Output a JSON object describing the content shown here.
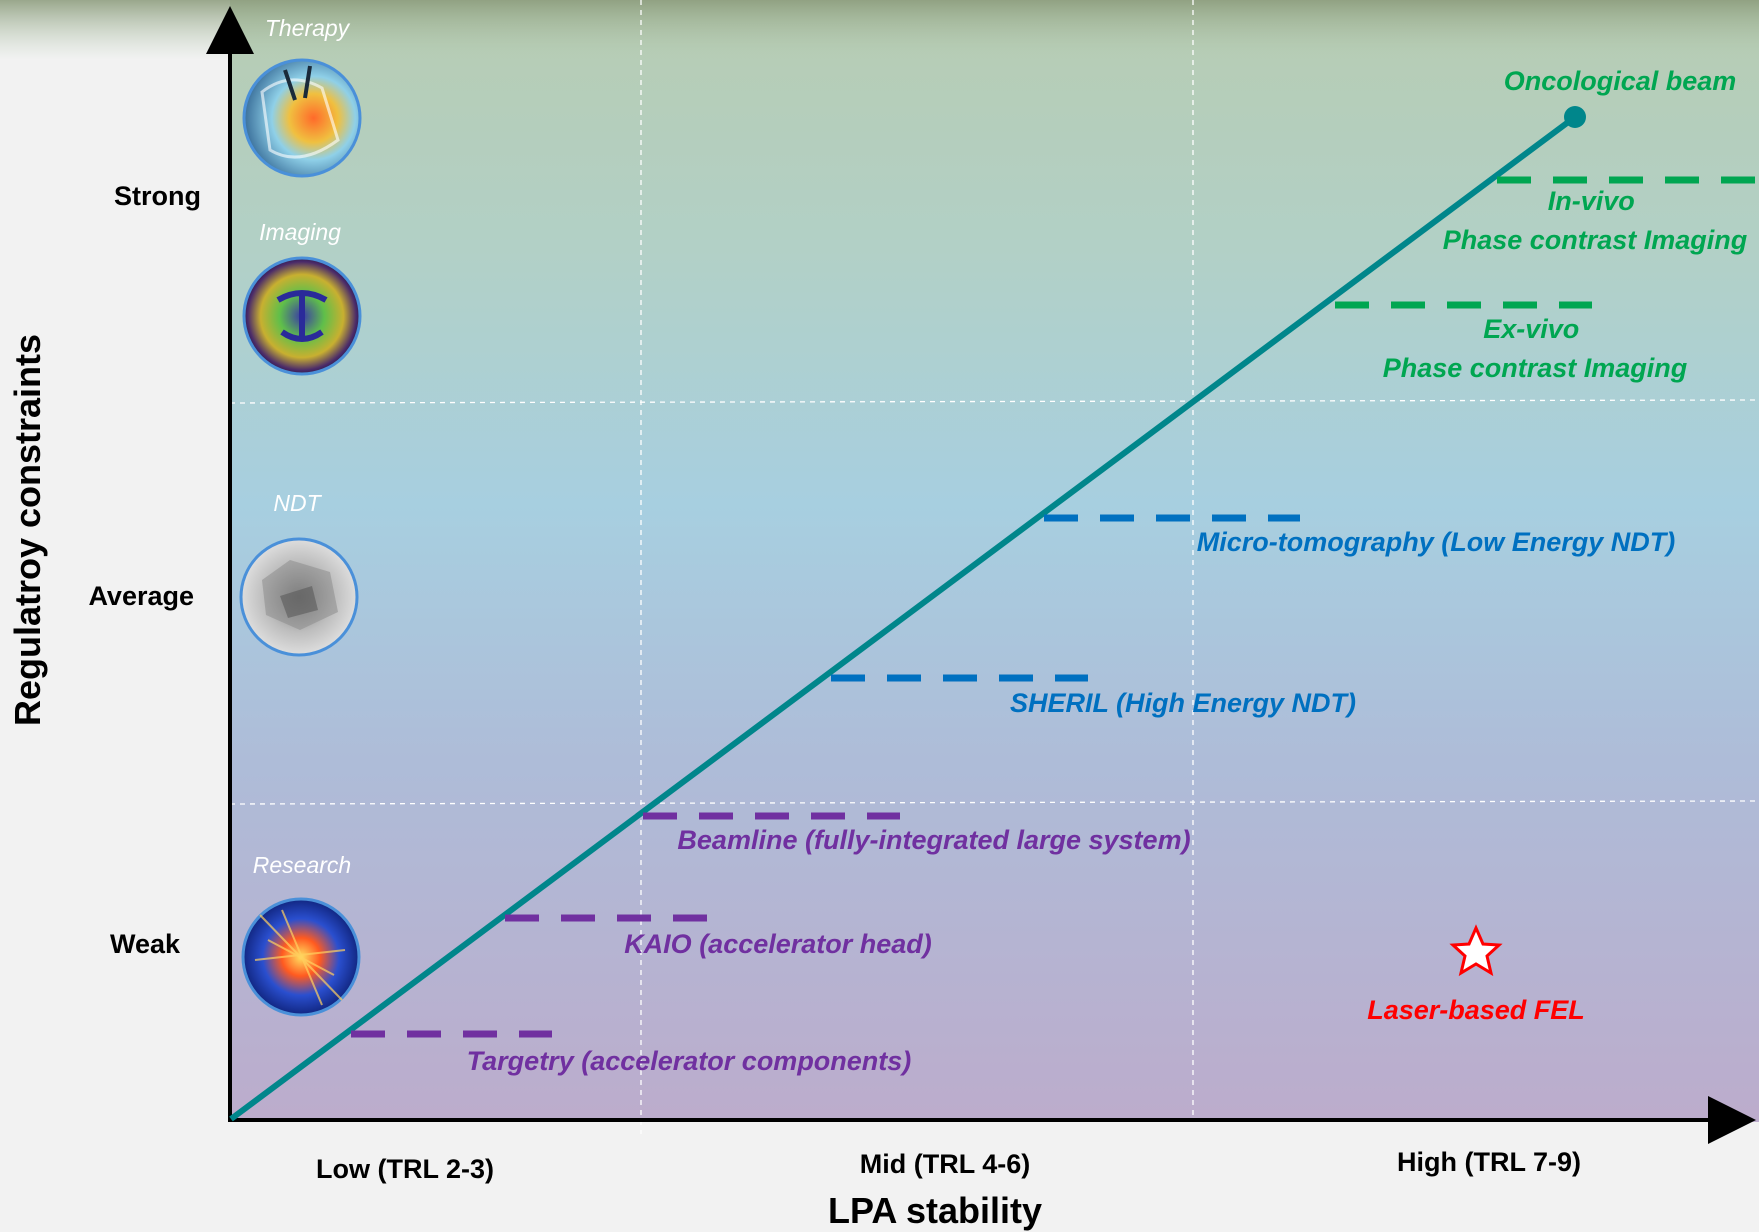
{
  "axes": {
    "y_title": "Regulatroy constraints",
    "x_title": "LPA stability",
    "y_levels": [
      {
        "label": "Strong"
      },
      {
        "label": "Average"
      },
      {
        "label": "Weak"
      }
    ],
    "x_levels": [
      {
        "label": "Low (TRL 2-3)"
      },
      {
        "label": "Mid (TRL 4-6)"
      },
      {
        "label": "High (TRL 7-9)"
      }
    ]
  },
  "categories": [
    {
      "label": "Therapy",
      "icon": "therapy-scan-icon"
    },
    {
      "label": "Imaging",
      "icon": "brain-scan-icon"
    },
    {
      "label": "NDT",
      "icon": "ndt-sample-icon"
    },
    {
      "label": "Research",
      "icon": "particle-shower-icon"
    }
  ],
  "endpoint": {
    "label": "Oncological beam",
    "color": "#00a651"
  },
  "applications": [
    {
      "lines": [
        "In-vivo",
        "Phase contrast Imaging"
      ],
      "color": "#00a651"
    },
    {
      "lines": [
        "Ex-vivo",
        "Phase contrast Imaging"
      ],
      "color": "#00a651"
    },
    {
      "lines": [
        "Micro-tomography (Low Energy NDT)"
      ],
      "color": "#0070c0"
    },
    {
      "lines": [
        "SHERIL (High Energy NDT)"
      ],
      "color": "#0070c0"
    },
    {
      "lines": [
        "Beamline (fully-integrated large system)"
      ],
      "color": "#7030a0"
    },
    {
      "lines": [
        "KAIO (accelerator head)"
      ],
      "color": "#7030a0"
    },
    {
      "lines": [
        "Targetry (accelerator components)"
      ],
      "color": "#7030a0"
    }
  ],
  "special": {
    "label": "Laser-based FEL",
    "icon": "star-icon",
    "color": "#ff0000"
  },
  "colors": {
    "trend_line": "#00868b",
    "axis": "#000000",
    "grid": "#ffffff"
  }
}
